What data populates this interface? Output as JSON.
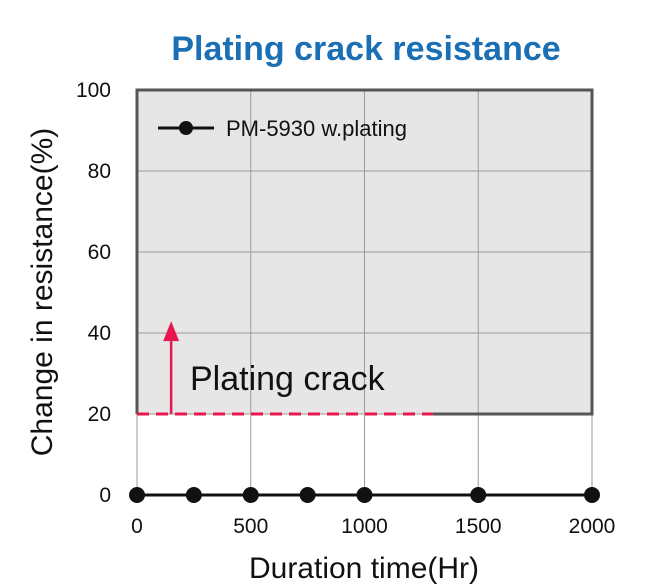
{
  "chart_data": {
    "type": "line",
    "title": "Plating crack resistance",
    "xlabel": "Duration time(Hr)",
    "ylabel": "Change in resistance(%)",
    "xlim": [
      0,
      2000
    ],
    "ylim": [
      0,
      100
    ],
    "x_ticks": [
      "0",
      "500",
      "1000",
      "1500",
      "2000"
    ],
    "y_ticks": [
      "0",
      "20",
      "40",
      "60",
      "80",
      "100"
    ],
    "grid": true,
    "legend_position": "top-left",
    "series": [
      {
        "name": "PM-5930 w.plating",
        "x": [
          0,
          250,
          500,
          750,
          1000,
          1500,
          2000
        ],
        "y": [
          0,
          0,
          0,
          0,
          0,
          0,
          0
        ]
      }
    ],
    "threshold": {
      "label": "Plating crack",
      "y": 20,
      "x_end": 1300
    },
    "colors": {
      "title": "#1a6fb5",
      "series": "#111111",
      "threshold": "#e8174f",
      "shaded_region": "#e6e6e6",
      "region_border": "#555555",
      "grid": "#9a9a9a"
    }
  }
}
